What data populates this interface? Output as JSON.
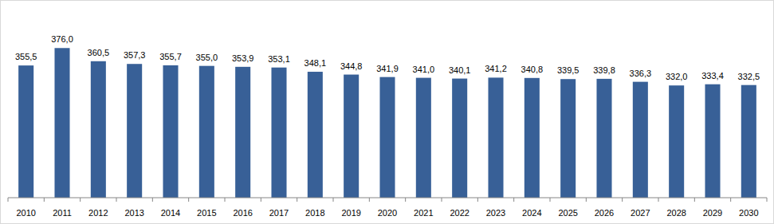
{
  "chart_data": {
    "type": "bar",
    "categories": [
      "2010",
      "2011",
      "2012",
      "2013",
      "2014",
      "2015",
      "2016",
      "2017",
      "2018",
      "2019",
      "2020",
      "2021",
      "2022",
      "2023",
      "2024",
      "2025",
      "2026",
      "2027",
      "2028",
      "2029",
      "2030"
    ],
    "values": [
      355.5,
      376.0,
      360.5,
      357.3,
      355.7,
      355.0,
      353.9,
      353.1,
      348.1,
      344.8,
      341.9,
      341.0,
      340.1,
      341.2,
      340.8,
      339.5,
      339.8,
      336.3,
      332.0,
      333.4,
      332.5
    ],
    "value_labels": [
      "355,5",
      "376,0",
      "360,5",
      "357,3",
      "355,7",
      "355,0",
      "353,9",
      "353,1",
      "348,1",
      "344,8",
      "341,9",
      "341,0",
      "340,1",
      "341,2",
      "340,8",
      "339,5",
      "339,8",
      "336,3",
      "332,0",
      "333,4",
      "332,5"
    ],
    "color": "#386097",
    "ylim": [
      200,
      380
    ],
    "data_labels": true,
    "tick_labels": "x",
    "grid": false
  }
}
